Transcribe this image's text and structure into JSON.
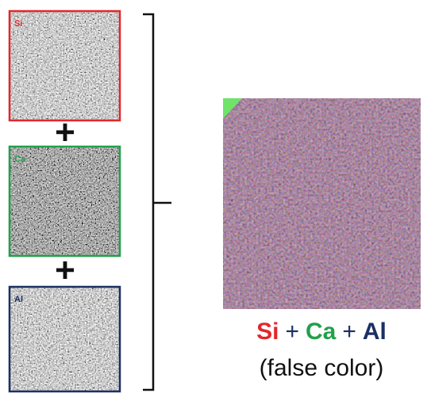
{
  "panels": [
    {
      "label": "Si",
      "color": "#e3262b"
    },
    {
      "label": "Ca",
      "color": "#22a04a"
    },
    {
      "label": "Al",
      "color": "#1b2f63"
    }
  ],
  "joiners": [
    "+",
    "+"
  ],
  "caption": {
    "parts": [
      {
        "text": "Si",
        "color": "#e3262b"
      },
      {
        "text": "+",
        "color": "#1b2f63"
      },
      {
        "text": "Ca",
        "color": "#22a04a"
      },
      {
        "text": "+",
        "color": "#1b2f63"
      },
      {
        "text": "Al",
        "color": "#1b2f63"
      }
    ],
    "subtitle": "(false color)"
  }
}
